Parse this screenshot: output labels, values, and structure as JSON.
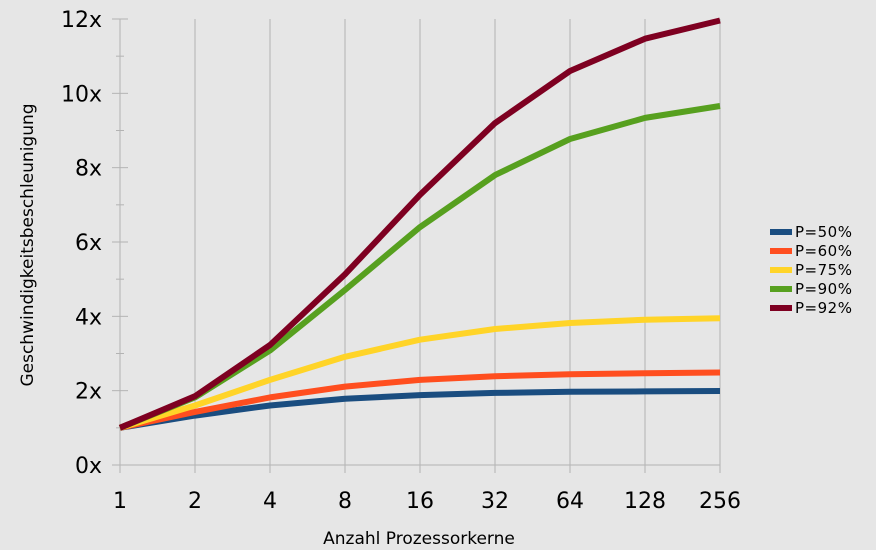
{
  "chart_data": {
    "type": "line",
    "title": "",
    "xlabel": "Anzahl Prozessorkerne",
    "ylabel": "Geschwindigkeitsbeschleunigung",
    "x": [
      "1",
      "2",
      "4",
      "8",
      "16",
      "32",
      "64",
      "128",
      "256"
    ],
    "yticks": [
      "0x",
      "2x",
      "4x",
      "6x",
      "8x",
      "10x",
      "12x"
    ],
    "ylim": [
      0,
      12
    ],
    "grid": "vertical gridlines at each x category",
    "legend_position": "right",
    "series": [
      {
        "name": "P=50%",
        "color": "#1a4d80",
        "values": [
          1.0,
          1.33,
          1.6,
          1.78,
          1.88,
          1.94,
          1.97,
          1.98,
          1.99
        ]
      },
      {
        "name": "P=60%",
        "color": "#ff4e1f",
        "values": [
          1.0,
          1.43,
          1.82,
          2.11,
          2.29,
          2.39,
          2.44,
          2.47,
          2.49
        ]
      },
      {
        "name": "P=75%",
        "color": "#ffd428",
        "values": [
          1.0,
          1.6,
          2.29,
          2.91,
          3.37,
          3.66,
          3.82,
          3.91,
          3.95
        ]
      },
      {
        "name": "P=90%",
        "color": "#57a01f",
        "values": [
          1.0,
          1.82,
          3.08,
          4.71,
          6.4,
          7.8,
          8.77,
          9.34,
          9.66
        ]
      },
      {
        "name": "P=92%",
        "color": "#7e0021",
        "values": [
          1.0,
          1.85,
          3.23,
          5.13,
          7.27,
          9.2,
          10.6,
          11.47,
          11.96
        ]
      }
    ]
  }
}
